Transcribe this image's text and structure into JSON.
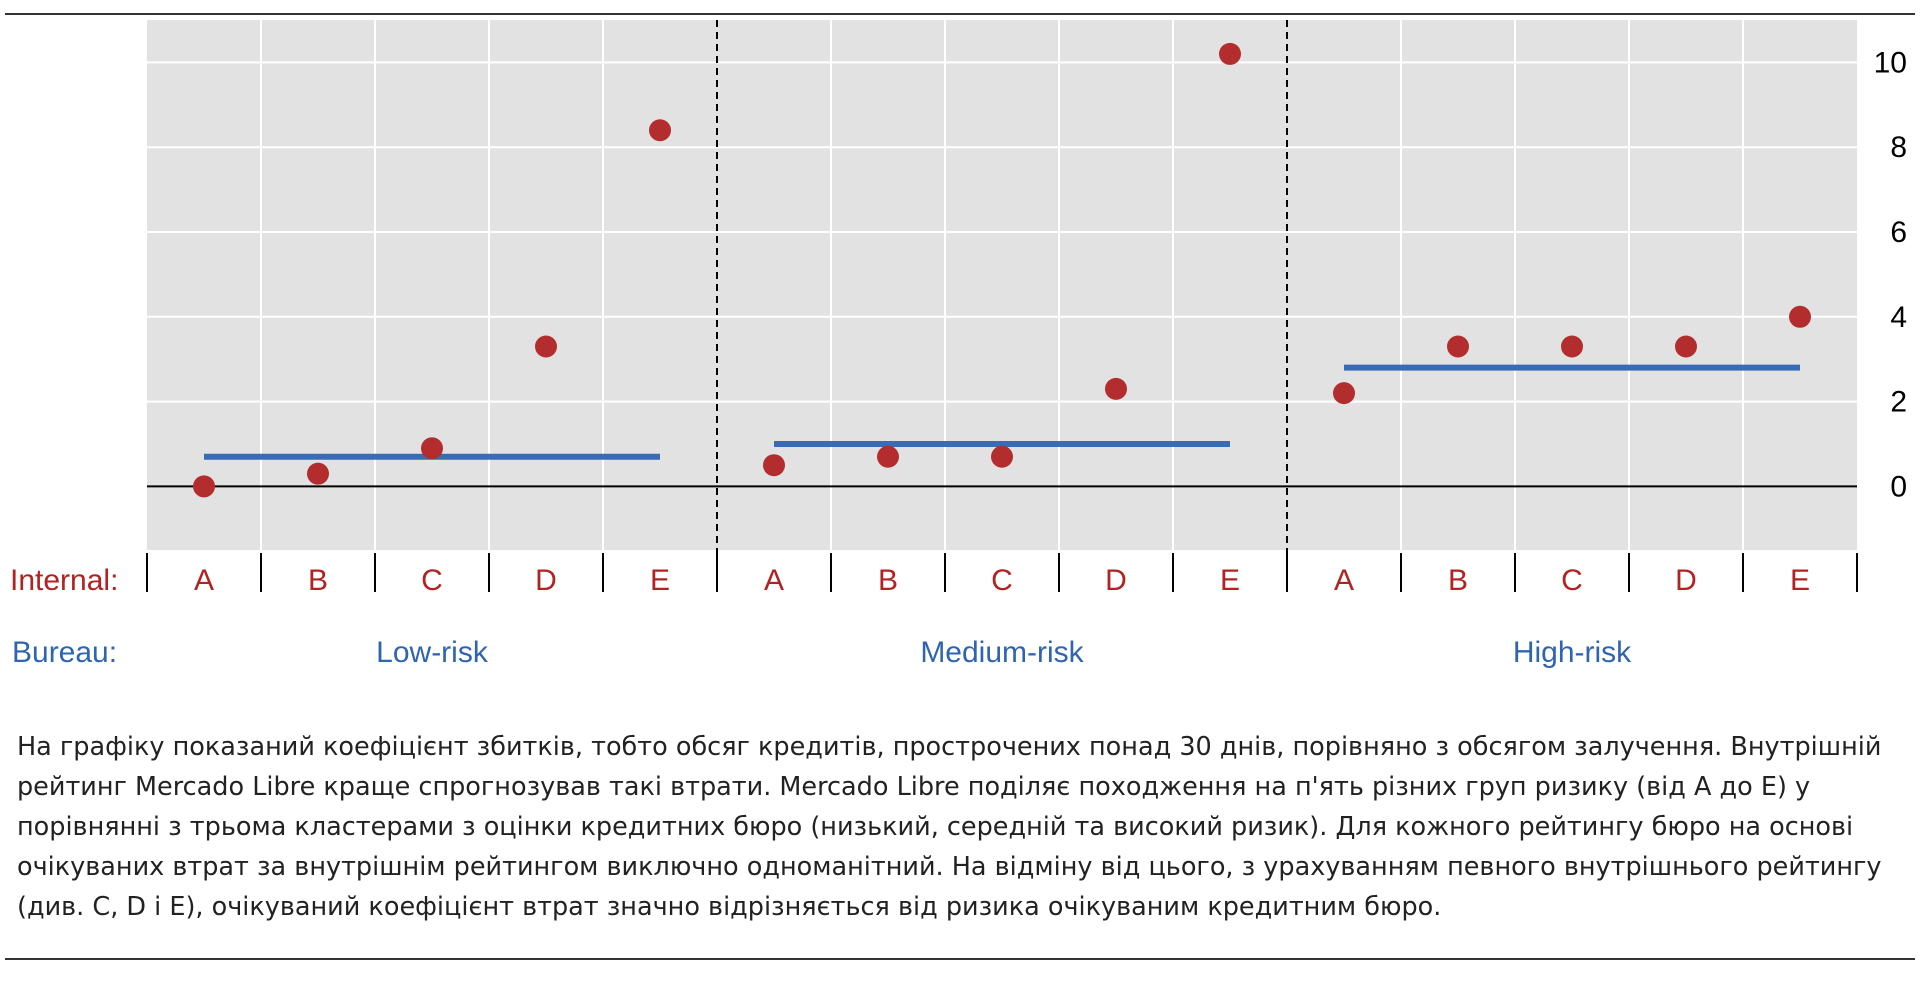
{
  "chart_data": {
    "type": "scatter",
    "row_labels": {
      "internal": "Internal:",
      "bureau": "Bureau:"
    },
    "groups": [
      "Low-risk",
      "Medium-risk",
      "High-risk"
    ],
    "internal_categories": [
      "A",
      "B",
      "C",
      "D",
      "E"
    ],
    "y_ticks": [
      0,
      2,
      4,
      6,
      8,
      10
    ],
    "ylim": [
      -1.5,
      11
    ],
    "grid": true,
    "colors": {
      "points": "#b32d2e",
      "bureau_line": "#3a6bb5",
      "background": "#e2e2e2",
      "grid": "#ffffff"
    },
    "series": [
      {
        "group": "Low-risk",
        "values": [
          0.0,
          0.3,
          0.9,
          3.3,
          8.4
        ],
        "bureau_average": 0.7
      },
      {
        "group": "Medium-risk",
        "values": [
          0.5,
          0.7,
          0.7,
          2.3,
          10.2
        ],
        "bureau_average": 1.0
      },
      {
        "group": "High-risk",
        "values": [
          2.2,
          3.3,
          3.3,
          3.3,
          4.0
        ],
        "bureau_average": 2.8
      }
    ]
  },
  "caption": "На графіку показаний коефіцієнт збитків, тобто обсяг кредитів, прострочених понад 30 днів, порівняно з обсягом залучення. Внутрішній рейтинг Mercado Libre краще спрогнозував такі втрати. Mercado Libre поділяє походження на п'ять різних груп ризику (від A до E) у порівнянні з трьома кластерами з оцінки кредитних бюро (низький, середній та високий ризик). Для кожного рейтингу бюро на основі очікуваних втрат за внутрішнім рейтингом виключно одноманітний. На відміну від цього, з урахуванням певного внутрішнього рейтингу (див. C, D і E), очікуваний коефіцієнт втрат значно відрізняється від ризика очікуваним кредитним бюро."
}
